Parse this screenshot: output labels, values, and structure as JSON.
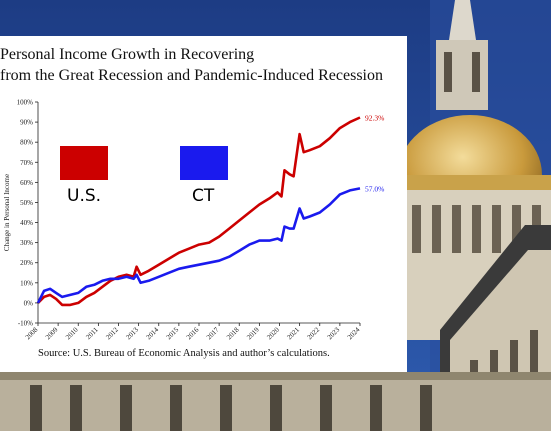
{
  "chart_data": {
    "type": "line",
    "title": "Personal Income Growth in Recovering from the Great Recession and Pandemic-Induced Recession",
    "title_lines": [
      "Personal Income Growth in Recovering",
      "from the Great Recession and Pandemic-Induced Recession"
    ],
    "xlabel": "",
    "ylabel": "Change in Personal Income",
    "ylim": [
      -10,
      100
    ],
    "yticks": [
      "-10%",
      "0%",
      "10%",
      "20%",
      "30%",
      "40%",
      "50%",
      "60%",
      "70%",
      "80%",
      "90%",
      "100%"
    ],
    "xticks": [
      "2008",
      "2009",
      "2010",
      "2011",
      "2012",
      "2013",
      "2014",
      "2015",
      "2016",
      "2017",
      "2018",
      "2019",
      "2020",
      "2021",
      "2022",
      "2023",
      "2024"
    ],
    "series": [
      {
        "name": "U.S.",
        "color": "#cc0000",
        "end_label": "92.3%",
        "points": [
          [
            2008.0,
            0
          ],
          [
            2008.3,
            3
          ],
          [
            2008.6,
            4
          ],
          [
            2008.9,
            2
          ],
          [
            2009.2,
            -1
          ],
          [
            2009.6,
            -1
          ],
          [
            2010.0,
            0
          ],
          [
            2010.4,
            3
          ],
          [
            2010.8,
            5
          ],
          [
            2011.2,
            8
          ],
          [
            2011.6,
            11
          ],
          [
            2012.0,
            13
          ],
          [
            2012.4,
            14
          ],
          [
            2012.75,
            13
          ],
          [
            2012.9,
            18
          ],
          [
            2013.1,
            14
          ],
          [
            2013.5,
            16
          ],
          [
            2014.0,
            19
          ],
          [
            2014.5,
            22
          ],
          [
            2015.0,
            25
          ],
          [
            2015.5,
            27
          ],
          [
            2016.0,
            29
          ],
          [
            2016.5,
            30
          ],
          [
            2017.0,
            33
          ],
          [
            2017.5,
            37
          ],
          [
            2018.0,
            41
          ],
          [
            2018.5,
            45
          ],
          [
            2019.0,
            49
          ],
          [
            2019.5,
            52
          ],
          [
            2019.9,
            55
          ],
          [
            2020.1,
            53
          ],
          [
            2020.25,
            66
          ],
          [
            2020.5,
            64
          ],
          [
            2020.7,
            63
          ],
          [
            2021.0,
            84
          ],
          [
            2021.2,
            75
          ],
          [
            2021.5,
            76
          ],
          [
            2022.0,
            78
          ],
          [
            2022.5,
            82
          ],
          [
            2023.0,
            87
          ],
          [
            2023.5,
            90
          ],
          [
            2024.0,
            92.3
          ]
        ]
      },
      {
        "name": "CT",
        "color": "#1a1aee",
        "end_label": "57.0%",
        "points": [
          [
            2008.0,
            0
          ],
          [
            2008.3,
            6
          ],
          [
            2008.6,
            7
          ],
          [
            2008.9,
            5
          ],
          [
            2009.2,
            3
          ],
          [
            2009.6,
            4
          ],
          [
            2010.0,
            5
          ],
          [
            2010.4,
            8
          ],
          [
            2010.8,
            9
          ],
          [
            2011.2,
            11
          ],
          [
            2011.6,
            12
          ],
          [
            2012.0,
            12
          ],
          [
            2012.4,
            13
          ],
          [
            2012.75,
            12
          ],
          [
            2012.9,
            14
          ],
          [
            2013.1,
            10
          ],
          [
            2013.5,
            11
          ],
          [
            2014.0,
            13
          ],
          [
            2014.5,
            15
          ],
          [
            2015.0,
            17
          ],
          [
            2015.5,
            18
          ],
          [
            2016.0,
            19
          ],
          [
            2016.5,
            20
          ],
          [
            2017.0,
            21
          ],
          [
            2017.5,
            23
          ],
          [
            2018.0,
            26
          ],
          [
            2018.5,
            29
          ],
          [
            2019.0,
            31
          ],
          [
            2019.5,
            31
          ],
          [
            2019.9,
            32
          ],
          [
            2020.1,
            31
          ],
          [
            2020.25,
            38
          ],
          [
            2020.5,
            37
          ],
          [
            2020.7,
            37
          ],
          [
            2021.0,
            47
          ],
          [
            2021.2,
            42
          ],
          [
            2021.5,
            43
          ],
          [
            2022.0,
            45
          ],
          [
            2022.5,
            49
          ],
          [
            2023.0,
            54
          ],
          [
            2023.5,
            56
          ],
          [
            2024.0,
            57.0
          ]
        ]
      }
    ],
    "legend": [
      {
        "label": "U.S.",
        "color": "#cc0000"
      },
      {
        "label": "CT",
        "color": "#1a1aee"
      }
    ],
    "source": "Source: U.S. Bureau of Economic Analysis and author’s calculations.",
    "grid": false
  }
}
